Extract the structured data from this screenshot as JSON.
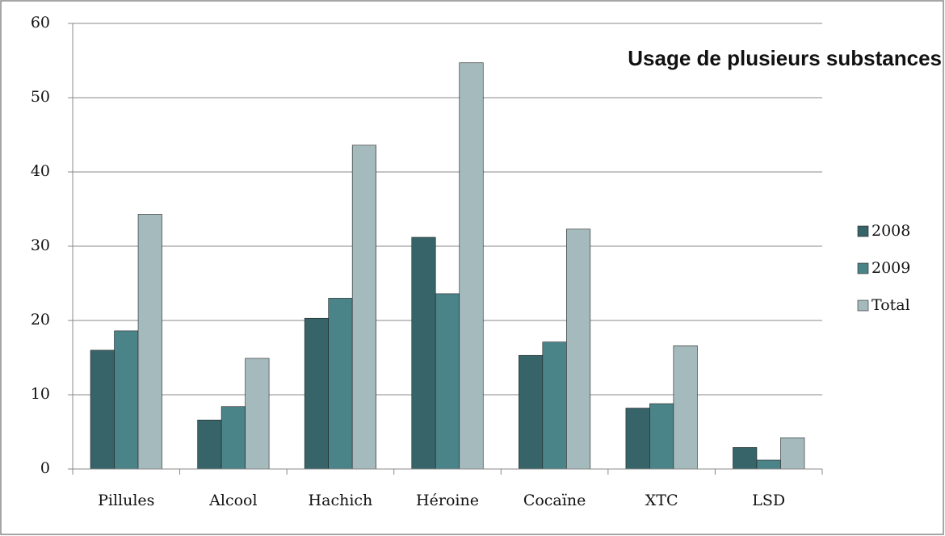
{
  "chart_data": {
    "type": "bar",
    "title": "Usage de plusieurs substances",
    "categories": [
      "Pillules",
      "Alcool",
      "Hachich",
      "Héroine",
      "Cocaïne",
      "XTC",
      "LSD"
    ],
    "series": [
      {
        "name": "2008",
        "color": "#376468",
        "values": [
          16.0,
          6.6,
          20.3,
          31.2,
          15.3,
          8.2,
          2.9
        ]
      },
      {
        "name": "2009",
        "color": "#4a8489",
        "values": [
          18.6,
          8.4,
          23.0,
          23.6,
          17.1,
          8.8,
          1.2
        ]
      },
      {
        "name": "Total",
        "color": "#a5babd",
        "values": [
          34.3,
          14.9,
          43.6,
          54.7,
          32.3,
          16.6,
          4.2
        ]
      }
    ],
    "ylim": [
      0,
      60
    ],
    "yticks": [
      0,
      10,
      20,
      30,
      40,
      50,
      60
    ],
    "grid": true,
    "legend": "right"
  }
}
